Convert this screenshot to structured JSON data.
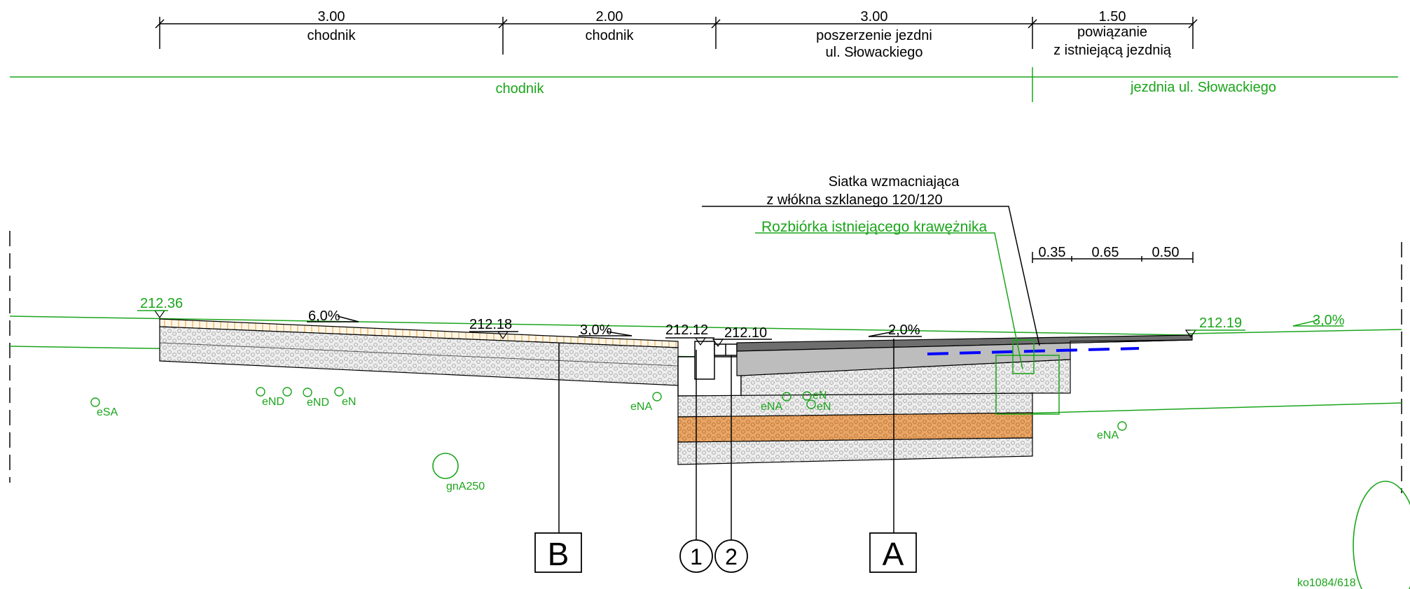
{
  "dimensions_top": [
    {
      "value": "3.00",
      "label": "chodnik",
      "label2": ""
    },
    {
      "value": "2.00",
      "label": "chodnik",
      "label2": ""
    },
    {
      "value": "3.00",
      "label": "poszerzenie jezdni",
      "label2": "ul. Słowackiego"
    },
    {
      "value": "1.50",
      "label": "powiązanie",
      "label2": "z istniejącą jezdnią"
    }
  ],
  "zones": {
    "left": "chodnik",
    "right": "jezdnia ul. Słowackiego"
  },
  "callouts": {
    "mesh_line1": "Siatka wzmacniająca",
    "mesh_line2": "z włókna szklanego 120/120",
    "curb_demolition": "Rozbiórka istniejącego krawężnika"
  },
  "small_dims": [
    "0.35",
    "0.65",
    "0.50"
  ],
  "elevations": {
    "left": "212.36",
    "mid": "212.18",
    "curb1": "212.12",
    "curb2": "212.10",
    "right": "212.19"
  },
  "slopes": {
    "s1": "6,0%",
    "s2": "3,0%",
    "s3": "2,0%",
    "s4": "3,0%"
  },
  "utilities": {
    "esa": "eSA",
    "end1": "eND",
    "end2": "eND",
    "en1": "eN",
    "ena1": "eNA",
    "ena2": "eNA",
    "en2": "eN",
    "en3": "eN",
    "ena3": "eNA",
    "gna": "gnA250"
  },
  "markers": {
    "b": "B",
    "one": "1",
    "two": "2",
    "a": "A"
  },
  "sheet_id": "ko1084/618",
  "colors": {
    "line": "#000000",
    "existing": "#1aa51a",
    "mesh": "#0000ff",
    "asphalt": "#a6a6a6",
    "aggregate": "#e9e9e9",
    "orange_layer": "#e8a060",
    "paving": "#f2c98a"
  }
}
